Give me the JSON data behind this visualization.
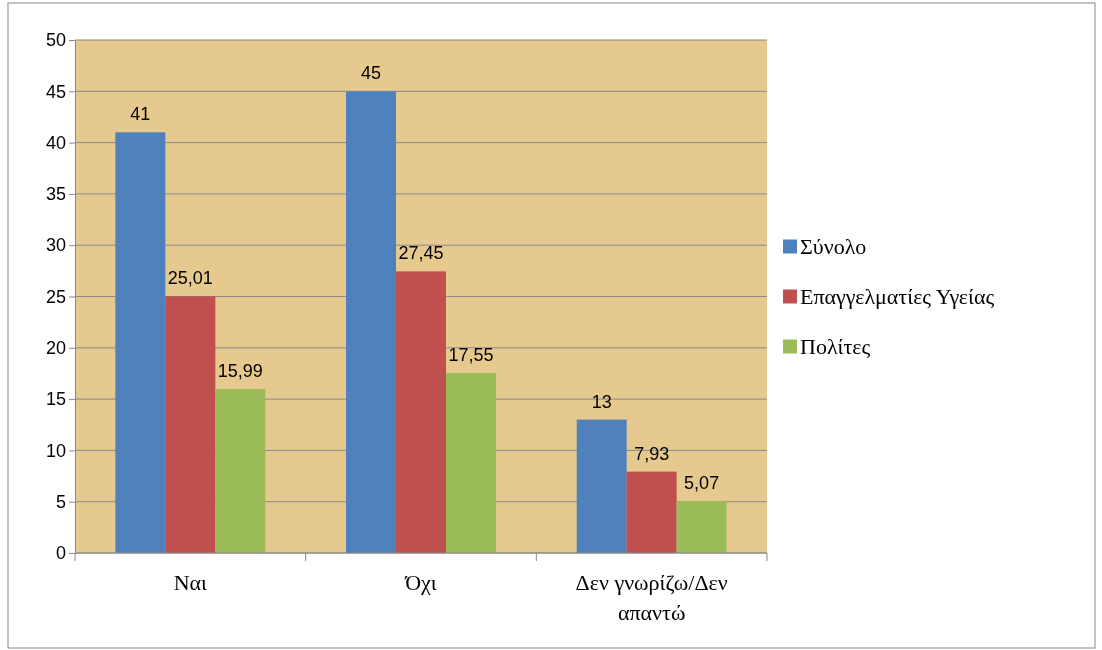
{
  "chart_data": {
    "type": "bar",
    "categories": [
      "Ναι",
      "Όχι",
      "Δεν γνωρίζω/Δεν απαντώ"
    ],
    "series": [
      {
        "name": "Σύνολο",
        "color": "#4f81bd",
        "values": [
          41,
          45,
          13
        ],
        "value_labels": [
          "41",
          "45",
          "13"
        ]
      },
      {
        "name": "Επαγγελματίες Υγείας",
        "color": "#c0504d",
        "values": [
          25.01,
          27.45,
          7.93
        ],
        "value_labels": [
          "25,01",
          "27,45",
          "7,93"
        ]
      },
      {
        "name": "Πολίτες",
        "color": "#9bbb59",
        "values": [
          15.99,
          17.55,
          5.07
        ],
        "value_labels": [
          "15,99",
          "17,55",
          "5,07"
        ]
      }
    ],
    "ylim": [
      0,
      50
    ],
    "yticks": [
      0,
      5,
      10,
      15,
      20,
      25,
      30,
      35,
      40,
      45,
      50
    ],
    "grid": "y",
    "legend": "right"
  }
}
